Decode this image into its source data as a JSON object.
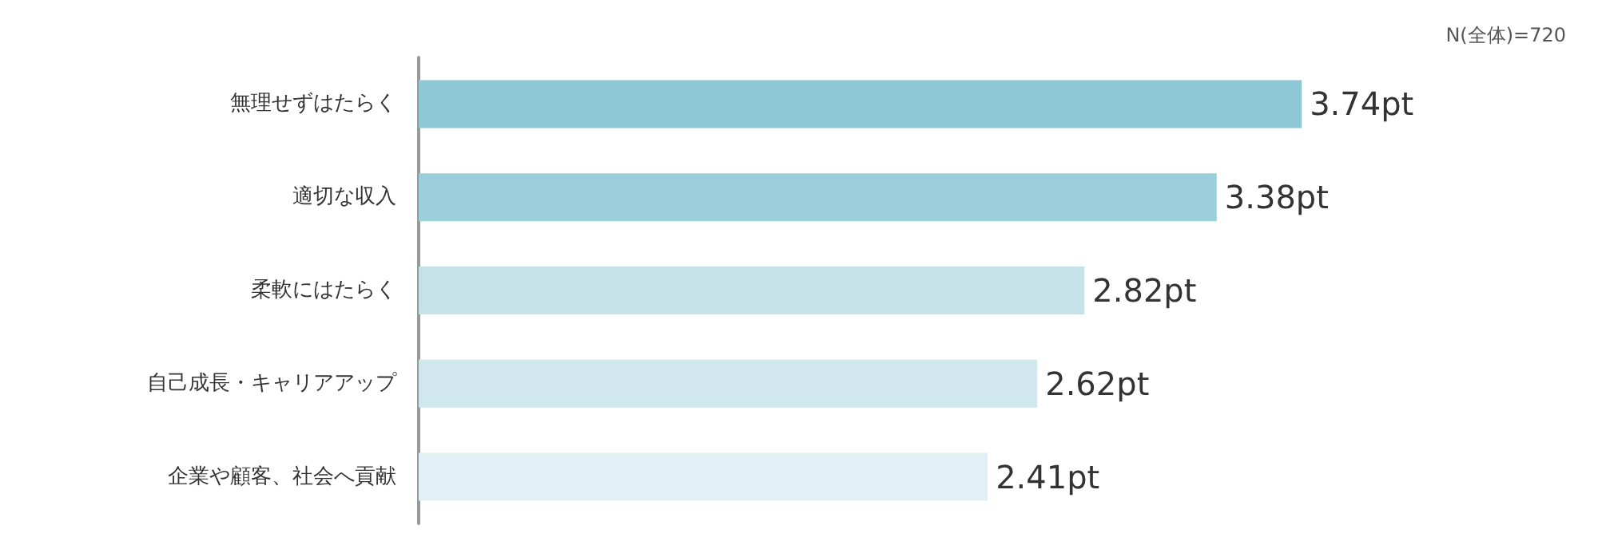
{
  "chart_data": {
    "type": "bar",
    "orientation": "horizontal",
    "categories": [
      "無理せずはたらく",
      "適切な収入",
      "柔軟にはたらく",
      "自己成長・キャリアアップ",
      "企業や顧客、社会へ貢献"
    ],
    "values": [
      3.74,
      3.38,
      2.82,
      2.62,
      2.41
    ],
    "colors": [
      "#8ec7d5",
      "#9bcfdc",
      "#c6e2e9",
      "#cfe7ed",
      "#e0f0f4"
    ],
    "value_labels": [
      "3.74pt",
      "3.38pt",
      "2.82pt",
      "2.62pt",
      "2.41pt"
    ],
    "tick_labels": "y",
    "grid": false,
    "annotations": [
      "N(全体)=720"
    ]
  }
}
